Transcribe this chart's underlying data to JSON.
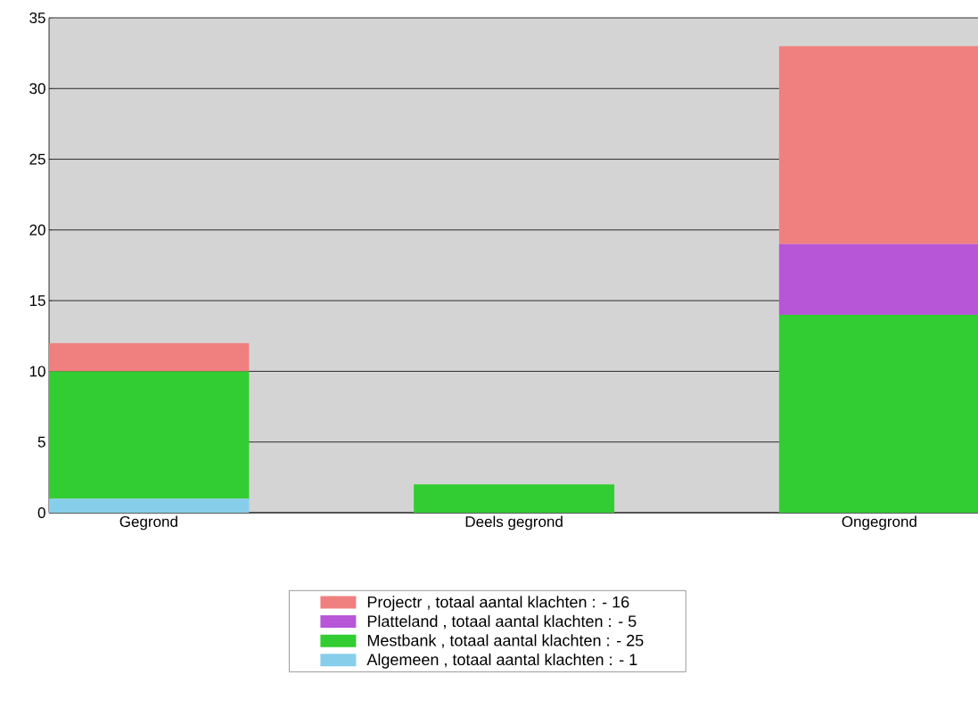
{
  "chart_data": {
    "type": "bar",
    "stacked": true,
    "categories": [
      "Gegrond",
      "Deels gegrond",
      "Ongegrond"
    ],
    "series": [
      {
        "name": "Algemeen , totaal aantal klachten :  - 1",
        "color": "#87ceeb",
        "values": [
          1,
          0,
          0
        ]
      },
      {
        "name": "Mestbank , totaal aantal klachten :  - 25",
        "color": "#32cd32",
        "values": [
          9,
          2,
          14
        ]
      },
      {
        "name": "Platteland , totaal aantal klachten :  - 5",
        "color": "#b856d8",
        "values": [
          0,
          0,
          5
        ]
      },
      {
        "name": "Projectr , totaal aantal klachten :  - 16",
        "color": "#f08080",
        "values": [
          2,
          0,
          14
        ]
      }
    ],
    "ylim": [
      0,
      35
    ],
    "yticks": [
      0,
      5,
      10,
      15,
      20,
      25,
      30,
      35
    ],
    "grid": "y",
    "legend": "bottom"
  }
}
